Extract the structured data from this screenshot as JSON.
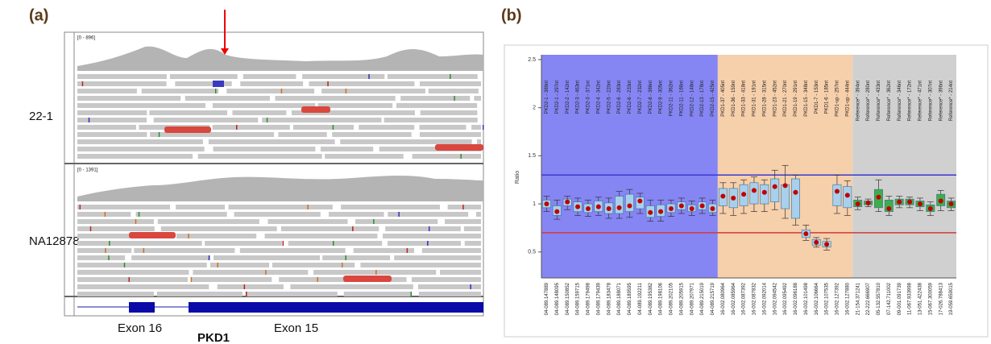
{
  "panel_a": {
    "label": "(a)",
    "tracks": [
      {
        "sample": "22-1",
        "range": "[0 - 896]"
      },
      {
        "sample": "NA12878",
        "range": "[0 - 1391]"
      }
    ],
    "exons": [
      "Exon 16",
      "Exon 15"
    ],
    "gene": "PKD1"
  },
  "chart_data": {
    "type": "box",
    "panel_label": "(b)",
    "y_label": "Ratio",
    "categories": [
      "PKD2-1 - 389nt",
      "PKD2-1 - 297nt",
      "PKD2-2 - 142nt",
      "PKD2-3 - 463nt",
      "PKD2-3 - 371nt",
      "PKD2-4 - 342nt",
      "PKD2-5 - 220nt",
      "PKD2-6 - 283nt",
      "PKD2-6 - 233nt",
      "PKD2-7 - 232nt",
      "PKD2-8 - 386nt",
      "PKD2-9 - 305nt",
      "PKD2-11 - 362nt",
      "PKD2-11 - 166nt",
      "PKD2-12 - 148nt",
      "PKD2-13 - 178nt",
      "PKD2-15 - 425nt",
      "PKD1-37 - 405nt",
      "PKD1-36 - 159nt",
      "PKD1-33 - 418nt",
      "PKD1-31 - 191nt",
      "PKD1-28 - 315nt",
      "PKD1-23 - 452nt",
      "PKD1-21 - 270nt",
      "PKD1-19 - 291nt",
      "PKD1-15 - 348nt",
      "PKD1-7 - 153nt",
      "PKD1-6 - 185nt",
      "PKD1-up - 257nt",
      "PKD1-up - 444nt",
      "Reference* - 394nt",
      "Reference* - 280nt",
      "Reference* - 433nt",
      "Reference* - 362nt",
      "Reference* - 346nt",
      "Reference* - 172nt",
      "Reference* - 471nt",
      "Reference* - 307nt",
      "Reference* - 396nt",
      "Reference* - 214nt"
    ],
    "positions": [
      "04-089.147889",
      "04-089.148095",
      "04-089.150852",
      "04-089.159715",
      "04-089.179498",
      "04-089.179439",
      "04-089.183478",
      "04-089.188071",
      "04-089.189595",
      "04-089.192211",
      "04-089.195382",
      "04-089.198106",
      "04-089.202105",
      "04-089.205915",
      "04-089.207971",
      "04-089.215019",
      "04-089.215719",
      "16-002.080964",
      "16-002.085964",
      "16-002.087392",
      "16-002.087832",
      "16-002.092014",
      "16-002.094542",
      "16-002.095492",
      "16-002.096188",
      "16-002.101498",
      "16-002.106664",
      "16-002.107535",
      "16-002.127392",
      "16-002.127880",
      "21-154.371241",
      "22-222.666907",
      "05-132.557810",
      "07-142.711002",
      "09-001.091739",
      "11-067.933998",
      "13-051.422438",
      "15-067.300059",
      "17-026.788413",
      "19-059.659015"
    ],
    "median": [
      1.0,
      0.92,
      1.02,
      0.97,
      0.95,
      0.97,
      0.95,
      0.96,
      0.98,
      1.03,
      0.91,
      0.92,
      0.95,
      0.98,
      0.95,
      0.98,
      0.95,
      1.08,
      1.06,
      1.1,
      1.14,
      1.12,
      1.18,
      1.19,
      1.12,
      0.69,
      0.6,
      0.58,
      1.13,
      1.09,
      1.0,
      1.01,
      1.07,
      0.95,
      1.02,
      1.02,
      1.0,
      0.95,
      1.03,
      1.0
    ],
    "q1": [
      0.96,
      0.88,
      0.98,
      0.92,
      0.91,
      0.92,
      0.9,
      0.9,
      0.92,
      0.95,
      0.86,
      0.87,
      0.91,
      0.94,
      0.92,
      0.94,
      0.91,
      0.98,
      0.96,
      0.98,
      1.0,
      1.0,
      1.02,
      0.95,
      0.85,
      0.65,
      0.57,
      0.55,
      0.98,
      0.96,
      0.97,
      0.99,
      0.96,
      0.92,
      0.99,
      0.99,
      0.97,
      0.92,
      0.98,
      0.96
    ],
    "q3": [
      1.04,
      0.98,
      1.05,
      1.02,
      1.0,
      1.03,
      1.01,
      1.08,
      1.1,
      1.07,
      0.98,
      0.99,
      1.0,
      1.02,
      0.99,
      1.02,
      1.0,
      1.16,
      1.16,
      1.2,
      1.22,
      1.2,
      1.26,
      1.2,
      1.26,
      0.73,
      0.63,
      0.61,
      1.2,
      1.18,
      1.04,
      1.03,
      1.15,
      1.04,
      1.05,
      1.05,
      1.03,
      0.99,
      1.1,
      1.03
    ],
    "whisker_low": [
      0.92,
      0.84,
      0.94,
      0.88,
      0.87,
      0.88,
      0.85,
      0.85,
      0.86,
      0.9,
      0.82,
      0.82,
      0.87,
      0.9,
      0.88,
      0.9,
      0.88,
      0.9,
      0.88,
      0.9,
      0.92,
      0.92,
      0.94,
      0.85,
      0.78,
      0.62,
      0.55,
      0.52,
      0.9,
      0.88,
      0.94,
      0.97,
      0.92,
      0.88,
      0.96,
      0.96,
      0.93,
      0.88,
      0.93,
      0.93
    ],
    "whisker_high": [
      1.08,
      1.04,
      1.08,
      1.06,
      1.04,
      1.07,
      1.06,
      1.13,
      1.15,
      1.11,
      1.04,
      1.04,
      1.04,
      1.06,
      1.03,
      1.06,
      1.04,
      1.22,
      1.22,
      1.25,
      1.28,
      1.25,
      1.35,
      1.4,
      1.3,
      0.78,
      0.65,
      0.64,
      1.3,
      1.24,
      1.07,
      1.05,
      1.25,
      1.08,
      1.08,
      1.07,
      1.06,
      1.02,
      1.14,
      1.06
    ],
    "regions": [
      {
        "span": 17,
        "color": "#8585f3",
        "box_color": "#a8d0ec"
      },
      {
        "span": 13,
        "color": "#f6cfab",
        "box_color": "#a8d0ec"
      },
      {
        "span": 10,
        "color": "#d0d0d0",
        "box_color": "#3fae4a"
      }
    ],
    "reference_lines": [
      {
        "value": 1.3,
        "color": "#3a3ad0"
      },
      {
        "value": 0.7,
        "color": "#d23a3a"
      }
    ],
    "median_color": "#c00000",
    "ylim": [
      0.23,
      2.55
    ],
    "yticks": [
      0.5,
      1,
      1.5,
      2,
      2.5
    ]
  }
}
